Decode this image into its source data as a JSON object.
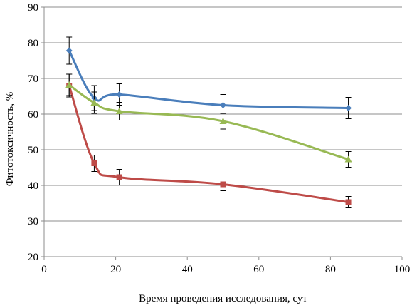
{
  "chart_data": {
    "type": "line",
    "title": "",
    "xlabel": "Время проведения исследования, сут",
    "ylabel": "Фитотоксичность, %",
    "xlim": [
      0,
      100
    ],
    "ylim": [
      20,
      90
    ],
    "x_ticks": [
      "0",
      "20",
      "40",
      "60",
      "80",
      "100"
    ],
    "y_ticks": [
      "20",
      "30",
      "40",
      "50",
      "60",
      "70",
      "80",
      "90"
    ],
    "grid": "horizontal",
    "legend": "none",
    "series": [
      {
        "color": "#4a7ebb",
        "marker": "diamond",
        "x": [
          7,
          14,
          21,
          50,
          85
        ],
        "y": [
          77.8,
          64.5,
          65.5,
          62.5,
          61.7
        ],
        "err": [
          3.8,
          3.5,
          3.0,
          3.0,
          3.0
        ]
      },
      {
        "color": "#be4b48",
        "marker": "square",
        "x": [
          7,
          14,
          21,
          50,
          85
        ],
        "y": [
          68.0,
          46.2,
          42.3,
          40.3,
          35.3
        ],
        "err": [
          3.2,
          2.3,
          2.2,
          1.8,
          1.6
        ]
      },
      {
        "color": "#98b954",
        "marker": "triangle",
        "x": [
          7,
          14,
          21,
          50,
          85
        ],
        "y": [
          68.2,
          63.2,
          60.8,
          58.0,
          47.3
        ],
        "err": [
          3.0,
          3.0,
          2.5,
          2.2,
          2.2
        ]
      }
    ]
  }
}
